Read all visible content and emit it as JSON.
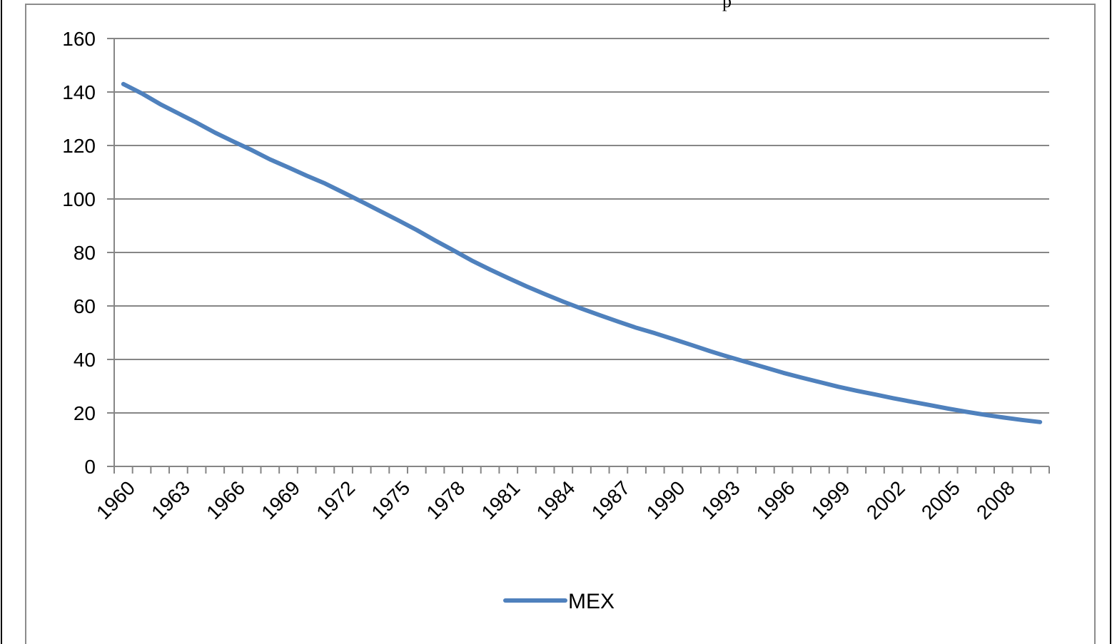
{
  "page": {
    "top_fragment": "p"
  },
  "chart_data": {
    "type": "line",
    "title": "",
    "xlabel": "",
    "ylabel": "",
    "ylim": [
      0,
      160
    ],
    "yticks": [
      0,
      20,
      40,
      60,
      80,
      100,
      120,
      140,
      160
    ],
    "x_start": 1960,
    "x_end": 2010,
    "x_tick_labels": [
      "1960",
      "1963",
      "1966",
      "1969",
      "1972",
      "1975",
      "1978",
      "1981",
      "1984",
      "1987",
      "1990",
      "1993",
      "1996",
      "1999",
      "2002",
      "2005",
      "2008"
    ],
    "grid": true,
    "legend": "bottom",
    "series": [
      {
        "name": "MEX",
        "color": "#4f81bd",
        "x": [
          1960,
          1961,
          1962,
          1963,
          1964,
          1965,
          1966,
          1967,
          1968,
          1969,
          1970,
          1971,
          1972,
          1973,
          1974,
          1975,
          1976,
          1977,
          1978,
          1979,
          1980,
          1981,
          1982,
          1983,
          1984,
          1985,
          1986,
          1987,
          1988,
          1989,
          1990,
          1991,
          1992,
          1993,
          1994,
          1995,
          1996,
          1997,
          1998,
          1999,
          2000,
          2001,
          2002,
          2003,
          2004,
          2005,
          2006,
          2007,
          2008,
          2009,
          2010
        ],
        "values": [
          143,
          139.5,
          135.5,
          132,
          128.5,
          124.8,
          121.5,
          118.3,
          114.8,
          111.8,
          108.7,
          105.8,
          102.4,
          99,
          95.5,
          92,
          88.4,
          84.5,
          80.8,
          77,
          73.6,
          70.4,
          67.3,
          64.4,
          61.6,
          59,
          56.5,
          54.1,
          51.8,
          49.8,
          47.6,
          45.4,
          43.1,
          41,
          39,
          37,
          35,
          33.2,
          31.5,
          29.8,
          28.3,
          26.9,
          25.5,
          24.2,
          22.9,
          21.6,
          20.4,
          19.3,
          18.3,
          17.4,
          16.6
        ]
      }
    ]
  }
}
